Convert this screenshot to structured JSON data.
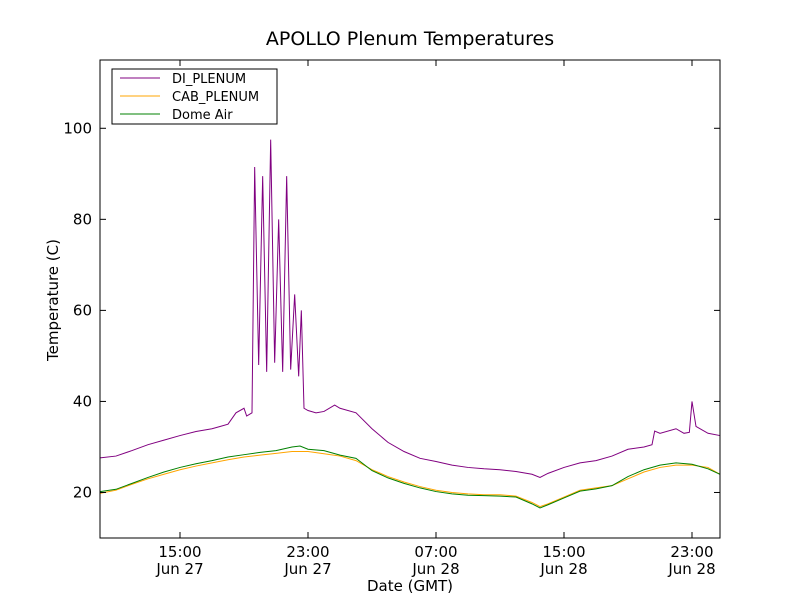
{
  "chart_data": {
    "type": "line",
    "title": "APOLLO Plenum Temperatures",
    "xlabel": "Date (GMT)",
    "ylabel": "Temperature (C)",
    "xlim": [
      "2013-06-27 10:00",
      "2013-06-29 00:45"
    ],
    "ylim": [
      10,
      115
    ],
    "grid": false,
    "legend_position": "top-left",
    "y_ticks": [
      20,
      40,
      60,
      80,
      100
    ],
    "x_ticks": [
      {
        "time": "2013-06-27 15:00",
        "line1": "15:00",
        "line2": "Jun 27"
      },
      {
        "time": "2013-06-27 23:00",
        "line1": "23:00",
        "line2": "Jun 27"
      },
      {
        "time": "2013-06-28 07:00",
        "line1": "07:00",
        "line2": "Jun 28"
      },
      {
        "time": "2013-06-28 15:00",
        "line1": "15:00",
        "line2": "Jun 28"
      },
      {
        "time": "2013-06-28 23:00",
        "line1": "23:00",
        "line2": "Jun 28"
      }
    ],
    "series": [
      {
        "name": "DI_PLENUM",
        "color": "#800080",
        "points": [
          [
            "2013-06-27 10:00",
            27.6
          ],
          [
            "2013-06-27 11:00",
            28.0
          ],
          [
            "2013-06-27 12:00",
            29.2
          ],
          [
            "2013-06-27 13:00",
            30.5
          ],
          [
            "2013-06-27 14:00",
            31.5
          ],
          [
            "2013-06-27 15:00",
            32.5
          ],
          [
            "2013-06-27 16:00",
            33.4
          ],
          [
            "2013-06-27 17:00",
            34.0
          ],
          [
            "2013-06-27 17:30",
            34.5
          ],
          [
            "2013-06-27 18:00",
            35.0
          ],
          [
            "2013-06-27 18:30",
            37.5
          ],
          [
            "2013-06-27 19:00",
            38.5
          ],
          [
            "2013-06-27 19:10",
            36.8
          ],
          [
            "2013-06-27 19:30",
            37.5
          ],
          [
            "2013-06-27 19:40",
            91.5
          ],
          [
            "2013-06-27 19:55",
            48.0
          ],
          [
            "2013-06-27 20:10",
            89.5
          ],
          [
            "2013-06-27 20:25",
            46.5
          ],
          [
            "2013-06-27 20:40",
            97.5
          ],
          [
            "2013-06-27 20:55",
            48.5
          ],
          [
            "2013-06-27 21:10",
            80.0
          ],
          [
            "2013-06-27 21:25",
            46.5
          ],
          [
            "2013-06-27 21:40",
            89.5
          ],
          [
            "2013-06-27 21:55",
            47.0
          ],
          [
            "2013-06-27 22:10",
            63.5
          ],
          [
            "2013-06-27 22:25",
            45.5
          ],
          [
            "2013-06-27 22:35",
            60.0
          ],
          [
            "2013-06-27 22:45",
            38.5
          ],
          [
            "2013-06-27 23:00",
            38.0
          ],
          [
            "2013-06-27 23:30",
            37.5
          ],
          [
            "2013-06-28 00:00",
            37.8
          ],
          [
            "2013-06-28 00:40",
            39.2
          ],
          [
            "2013-06-28 01:00",
            38.5
          ],
          [
            "2013-06-28 02:00",
            37.5
          ],
          [
            "2013-06-28 03:00",
            34.0
          ],
          [
            "2013-06-28 04:00",
            31.0
          ],
          [
            "2013-06-28 05:00",
            29.0
          ],
          [
            "2013-06-28 06:00",
            27.5
          ],
          [
            "2013-06-28 07:00",
            26.8
          ],
          [
            "2013-06-28 08:00",
            26.0
          ],
          [
            "2013-06-28 09:00",
            25.5
          ],
          [
            "2013-06-28 10:00",
            25.2
          ],
          [
            "2013-06-28 11:00",
            25.0
          ],
          [
            "2013-06-28 12:00",
            24.6
          ],
          [
            "2013-06-28 13:00",
            24.0
          ],
          [
            "2013-06-28 13:30",
            23.3
          ],
          [
            "2013-06-28 14:00",
            24.2
          ],
          [
            "2013-06-28 15:00",
            25.5
          ],
          [
            "2013-06-28 16:00",
            26.5
          ],
          [
            "2013-06-28 17:00",
            27.0
          ],
          [
            "2013-06-28 18:00",
            28.0
          ],
          [
            "2013-06-28 19:00",
            29.5
          ],
          [
            "2013-06-28 20:00",
            30.0
          ],
          [
            "2013-06-28 20:30",
            30.5
          ],
          [
            "2013-06-28 20:40",
            33.5
          ],
          [
            "2013-06-28 21:00",
            33.0
          ],
          [
            "2013-06-28 22:00",
            34.0
          ],
          [
            "2013-06-28 22:30",
            33.0
          ],
          [
            "2013-06-28 22:50",
            33.2
          ],
          [
            "2013-06-28 23:00",
            40.0
          ],
          [
            "2013-06-28 23:15",
            34.5
          ],
          [
            "2013-06-28 24:00",
            33.0
          ],
          [
            "2013-06-29 00:45",
            32.5
          ]
        ]
      },
      {
        "name": "CAB_PLENUM",
        "color": "#ffa500",
        "points": [
          [
            "2013-06-27 10:00",
            19.8
          ],
          [
            "2013-06-27 11:00",
            20.5
          ],
          [
            "2013-06-27 12:00",
            21.8
          ],
          [
            "2013-06-27 13:00",
            23.0
          ],
          [
            "2013-06-27 14:00",
            24.0
          ],
          [
            "2013-06-27 15:00",
            25.0
          ],
          [
            "2013-06-27 16:00",
            25.8
          ],
          [
            "2013-06-27 17:00",
            26.5
          ],
          [
            "2013-06-27 18:00",
            27.2
          ],
          [
            "2013-06-27 19:00",
            27.8
          ],
          [
            "2013-06-27 20:00",
            28.2
          ],
          [
            "2013-06-27 21:00",
            28.6
          ],
          [
            "2013-06-27 22:00",
            29.0
          ],
          [
            "2013-06-27 23:00",
            29.0
          ],
          [
            "2013-06-28 00:00",
            28.5
          ],
          [
            "2013-06-28 01:00",
            28.0
          ],
          [
            "2013-06-28 02:00",
            27.0
          ],
          [
            "2013-06-28 03:00",
            25.0
          ],
          [
            "2013-06-28 04:00",
            23.5
          ],
          [
            "2013-06-28 05:00",
            22.3
          ],
          [
            "2013-06-28 06:00",
            21.3
          ],
          [
            "2013-06-28 07:00",
            20.5
          ],
          [
            "2013-06-28 08:00",
            20.0
          ],
          [
            "2013-06-28 09:00",
            19.7
          ],
          [
            "2013-06-28 10:00",
            19.5
          ],
          [
            "2013-06-28 11:00",
            19.5
          ],
          [
            "2013-06-28 12:00",
            19.2
          ],
          [
            "2013-06-28 13:00",
            17.8
          ],
          [
            "2013-06-28 13:30",
            16.9
          ],
          [
            "2013-06-28 14:00",
            17.5
          ],
          [
            "2013-06-28 15:00",
            19.0
          ],
          [
            "2013-06-28 16:00",
            20.5
          ],
          [
            "2013-06-28 17:00",
            21.0
          ],
          [
            "2013-06-28 18:00",
            21.5
          ],
          [
            "2013-06-28 19:00",
            23.0
          ],
          [
            "2013-06-28 20:00",
            24.5
          ],
          [
            "2013-06-28 21:00",
            25.5
          ],
          [
            "2013-06-28 22:00",
            26.0
          ],
          [
            "2013-06-28 23:00",
            26.0
          ],
          [
            "2013-06-28 24:00",
            25.5
          ],
          [
            "2013-06-29 00:45",
            24.0
          ]
        ]
      },
      {
        "name": "Dome Air",
        "color": "#008000",
        "points": [
          [
            "2013-06-27 10:00",
            20.2
          ],
          [
            "2013-06-27 11:00",
            20.7
          ],
          [
            "2013-06-27 12:00",
            22.0
          ],
          [
            "2013-06-27 13:00",
            23.3
          ],
          [
            "2013-06-27 14:00",
            24.5
          ],
          [
            "2013-06-27 15:00",
            25.5
          ],
          [
            "2013-06-27 16:00",
            26.3
          ],
          [
            "2013-06-27 17:00",
            27.0
          ],
          [
            "2013-06-27 18:00",
            27.8
          ],
          [
            "2013-06-27 19:00",
            28.3
          ],
          [
            "2013-06-27 20:00",
            28.8
          ],
          [
            "2013-06-27 21:00",
            29.2
          ],
          [
            "2013-06-27 22:00",
            30.0
          ],
          [
            "2013-06-27 22:30",
            30.2
          ],
          [
            "2013-06-27 23:00",
            29.5
          ],
          [
            "2013-06-28 00:00",
            29.2
          ],
          [
            "2013-06-28 01:00",
            28.2
          ],
          [
            "2013-06-28 02:00",
            27.5
          ],
          [
            "2013-06-28 03:00",
            24.8
          ],
          [
            "2013-06-28 04:00",
            23.2
          ],
          [
            "2013-06-28 05:00",
            22.0
          ],
          [
            "2013-06-28 06:00",
            21.0
          ],
          [
            "2013-06-28 07:00",
            20.2
          ],
          [
            "2013-06-28 08:00",
            19.7
          ],
          [
            "2013-06-28 09:00",
            19.4
          ],
          [
            "2013-06-28 10:00",
            19.3
          ],
          [
            "2013-06-28 11:00",
            19.2
          ],
          [
            "2013-06-28 12:00",
            19.0
          ],
          [
            "2013-06-28 13:00",
            17.5
          ],
          [
            "2013-06-28 13:30",
            16.6
          ],
          [
            "2013-06-28 14:00",
            17.3
          ],
          [
            "2013-06-28 15:00",
            18.8
          ],
          [
            "2013-06-28 16:00",
            20.3
          ],
          [
            "2013-06-28 17:00",
            20.8
          ],
          [
            "2013-06-28 18:00",
            21.5
          ],
          [
            "2013-06-28 19:00",
            23.5
          ],
          [
            "2013-06-28 20:00",
            25.0
          ],
          [
            "2013-06-28 21:00",
            26.0
          ],
          [
            "2013-06-28 22:00",
            26.5
          ],
          [
            "2013-06-28 23:00",
            26.2
          ],
          [
            "2013-06-28 24:00",
            25.2
          ],
          [
            "2013-06-29 00:45",
            24.0
          ]
        ]
      }
    ]
  }
}
